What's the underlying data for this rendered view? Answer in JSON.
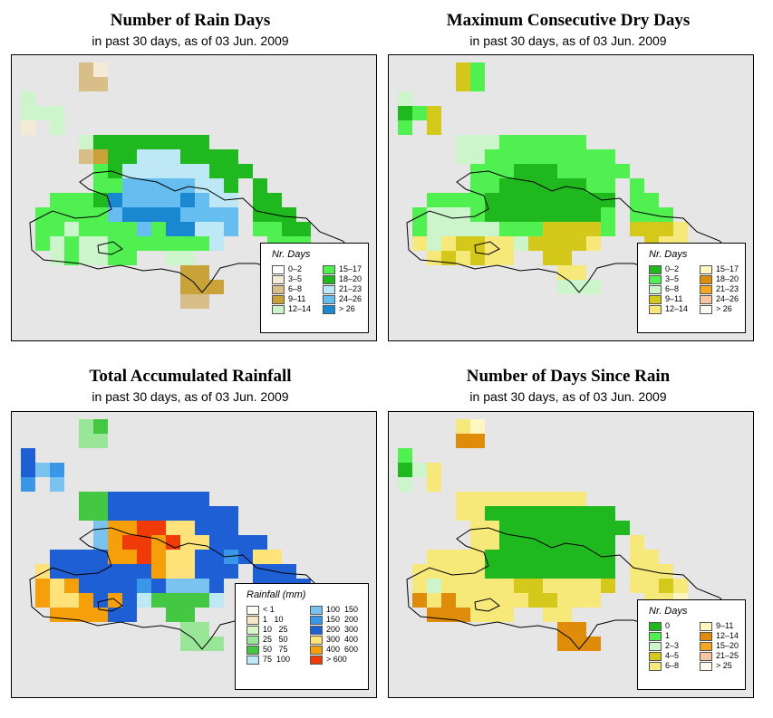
{
  "panels": [
    {
      "id": "rain-days",
      "title": "Number of Rain Days",
      "subtitle": "in past 30 days, as of  03 Jun. 2009",
      "legend": {
        "title": "Nr. Days",
        "items": [
          {
            "label": "0–2",
            "color": "#ffffff"
          },
          {
            "label": "3–5",
            "color": "#f5ead5"
          },
          {
            "label": "6–8",
            "color": "#d8bf8a"
          },
          {
            "label": "9–11",
            "color": "#c9a33a"
          },
          {
            "label": "12–14",
            "color": "#ccf5cc"
          },
          {
            "label": "15–17",
            "color": "#4ff04f"
          },
          {
            "label": "18–20",
            "color": "#1fb81f"
          },
          {
            "label": "21–23",
            "color": "#bfe8f7"
          },
          {
            "label": "24–26",
            "color": "#66bdf0"
          },
          {
            "label": "> 26",
            "color": "#1a88d0"
          }
        ]
      }
    },
    {
      "id": "dry-days",
      "title": "Maximum Consecutive Dry Days",
      "subtitle": "in past 30 days, as of  03 Jun. 2009",
      "legend": {
        "title": "Nr. Days",
        "items": [
          {
            "label": "0–2",
            "color": "#1fb81f"
          },
          {
            "label": "3–5",
            "color": "#4ff04f"
          },
          {
            "label": "6–8",
            "color": "#ccf5cc"
          },
          {
            "label": "9–11",
            "color": "#d4c81a"
          },
          {
            "label": "12–14",
            "color": "#f7e87a"
          },
          {
            "label": "15–17",
            "color": "#fff6c0"
          },
          {
            "label": "18–20",
            "color": "#de8c0a"
          },
          {
            "label": "21–23",
            "color": "#f5a623"
          },
          {
            "label": "24–26",
            "color": "#f7c3a0"
          },
          {
            "label": "> 26",
            "color": "#fffaf0"
          }
        ]
      }
    },
    {
      "id": "rainfall",
      "title": "Total Accumulated Rainfall",
      "subtitle": "in past 30 days, as of  03 Jun. 2009",
      "legend": {
        "title": "Rainfall (mm)",
        "items": [
          {
            "label": "< 1",
            "color": "#fffaf0"
          },
          {
            "label": "1   10",
            "color": "#f5e6c8"
          },
          {
            "label": "10   25",
            "color": "#d8f5c8"
          },
          {
            "label": "25   50",
            "color": "#99e699"
          },
          {
            "label": "50   75",
            "color": "#44c844"
          },
          {
            "label": "75  100",
            "color": "#bfe8f7"
          },
          {
            "label": "100  150",
            "color": "#7ac3f0"
          },
          {
            "label": "150  200",
            "color": "#3a96e6"
          },
          {
            "label": "200  300",
            "color": "#1f5fd6"
          },
          {
            "label": "300  400",
            "color": "#ffe27a"
          },
          {
            "label": "400  600",
            "color": "#f5a00a"
          },
          {
            "label": "> 600",
            "color": "#f03a0a"
          }
        ]
      }
    },
    {
      "id": "since-rain",
      "title": "Number of Days Since Rain",
      "subtitle": "in past 30 days, as of  03 Jun. 2009",
      "legend": {
        "title": "Nr. Days",
        "items": [
          {
            "label": "0",
            "color": "#1fb81f"
          },
          {
            "label": "1",
            "color": "#4ff04f"
          },
          {
            "label": "2–3",
            "color": "#ccf5cc"
          },
          {
            "label": "4–5",
            "color": "#d4c81a"
          },
          {
            "label": "6–8",
            "color": "#f7e87a"
          },
          {
            "label": "9–11",
            "color": "#fff6c0"
          },
          {
            "label": "12–14",
            "color": "#de8c0a"
          },
          {
            "label": "15–20",
            "color": "#f5a623"
          },
          {
            "label": "21–25",
            "color": "#f7c3a0"
          },
          {
            "label": "> 25",
            "color": "#fffaf0"
          }
        ]
      }
    }
  ]
}
